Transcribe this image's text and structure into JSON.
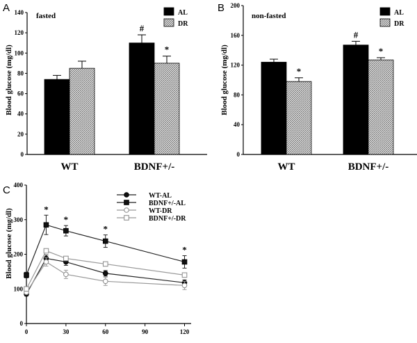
{
  "chart_data": [
    {
      "panel": "A",
      "type": "bar",
      "condition_label": "fasted",
      "ylabel": "Blood glucose (mg/dl)",
      "ylim": [
        0,
        140
      ],
      "yticks": [
        0,
        20,
        40,
        60,
        80,
        100,
        120,
        140
      ],
      "categories": [
        "WT",
        "BDNF+/-"
      ],
      "series": [
        {
          "name": "AL",
          "color": "#000000",
          "pattern": "solid",
          "values": [
            74,
            110
          ],
          "errors": [
            4,
            8
          ]
        },
        {
          "name": "DR",
          "color": "#bbbbbb",
          "pattern": "hatch",
          "values": [
            85,
            90
          ],
          "errors": [
            7,
            7
          ]
        }
      ],
      "annotations": [
        {
          "text": "#",
          "category": 1,
          "series": 0
        },
        {
          "text": "*",
          "category": 1,
          "series": 1
        }
      ]
    },
    {
      "panel": "B",
      "type": "bar",
      "condition_label": "non-fasted",
      "ylabel": "Blood glucose (mg/dl)",
      "ylim": [
        0,
        200
      ],
      "yticks": [
        0,
        40,
        80,
        120,
        160,
        200
      ],
      "categories": [
        "WT",
        "BDNF+/-"
      ],
      "series": [
        {
          "name": "AL",
          "color": "#000000",
          "pattern": "solid",
          "values": [
            124,
            147
          ],
          "errors": [
            4,
            5
          ]
        },
        {
          "name": "DR",
          "color": "#bbbbbb",
          "pattern": "hatch",
          "values": [
            98,
            127
          ],
          "errors": [
            5,
            3
          ]
        }
      ],
      "annotations": [
        {
          "text": "*",
          "category": 0,
          "series": 1
        },
        {
          "text": "#",
          "category": 1,
          "series": 0
        },
        {
          "text": "*",
          "category": 1,
          "series": 1
        }
      ]
    },
    {
      "panel": "C",
      "type": "line",
      "ylabel": "Blood glucose (mg/dl)",
      "x": [
        0,
        15,
        30,
        60,
        120
      ],
      "xlim": [
        0,
        125
      ],
      "xticks": [
        0,
        30,
        60,
        90,
        120
      ],
      "ylim": [
        0,
        400
      ],
      "yticks": [
        0,
        100,
        200,
        300,
        400
      ],
      "series": [
        {
          "name": "WT-AL",
          "marker": "circle-filled",
          "values": [
            85,
            188,
            178,
            145,
            118
          ],
          "errors": [
            5,
            10,
            10,
            8,
            8
          ]
        },
        {
          "name": "BDNF+/-AL",
          "marker": "square-filled",
          "values": [
            140,
            285,
            268,
            238,
            178
          ],
          "errors": [
            8,
            28,
            15,
            18,
            18
          ]
        },
        {
          "name": "WT-DR",
          "marker": "circle-open",
          "values": [
            90,
            178,
            142,
            122,
            110
          ],
          "errors": [
            5,
            12,
            12,
            12,
            12
          ]
        },
        {
          "name": "BDNF+/-DR",
          "marker": "square-open",
          "values": [
            100,
            210,
            188,
            172,
            140
          ],
          "errors": [
            5,
            5,
            5,
            5,
            5
          ]
        }
      ],
      "annotations": [
        {
          "text": "*",
          "x": 15
        },
        {
          "text": "*",
          "x": 30
        },
        {
          "text": "*",
          "x": 60
        },
        {
          "text": "*",
          "x": 120
        }
      ]
    }
  ]
}
